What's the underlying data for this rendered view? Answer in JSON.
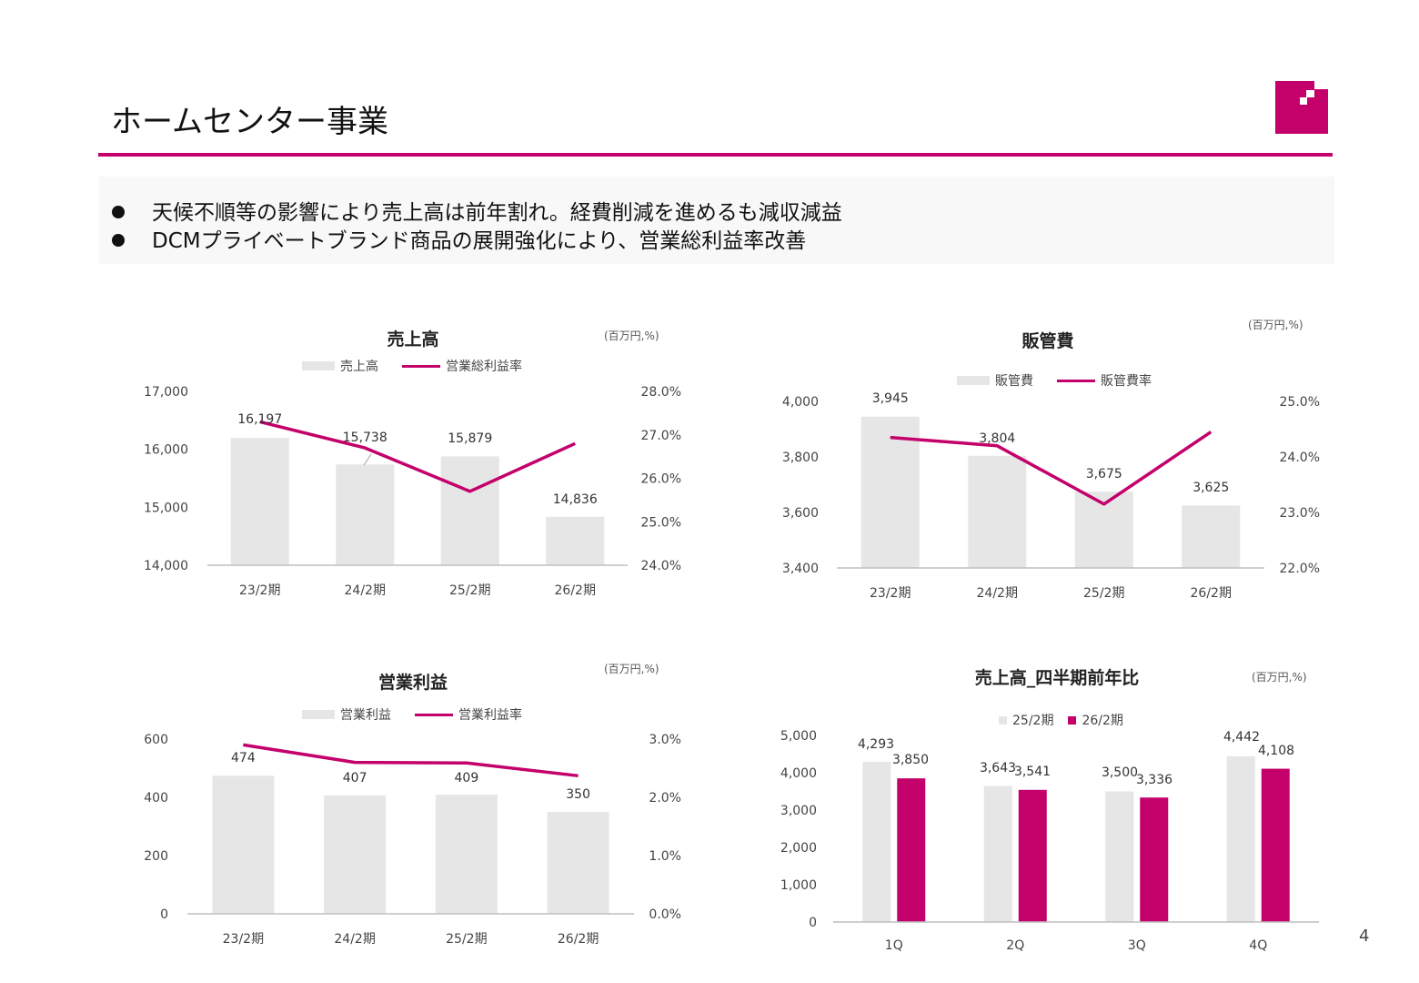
{
  "page": {
    "title": "ホームセンター事業",
    "page_number": "4",
    "accent_color": "#c4006b",
    "bar_color": "#e6e6e6",
    "bullets": [
      "天候不順等の影響により売上高は前年割れ。経費削減を進めるも減収減益",
      "DCMプライベートブランド商品の展開強化により、営業総利益率改善"
    ]
  },
  "charts": {
    "sales": {
      "title": "売上高",
      "unit": "(百万円,%)",
      "legend_bar": "売上高",
      "legend_line": "営業総利益率"
    },
    "sga": {
      "title": "販管費",
      "unit": "(百万円,%)",
      "legend_bar": "販管費",
      "legend_line": "販管費率"
    },
    "op": {
      "title": "営業利益",
      "unit": "(百万円,%)",
      "legend_bar": "営業利益",
      "legend_line": "営業利益率"
    },
    "quarterly": {
      "title": "売上高_四半期前年比",
      "unit": "(百万円,%)",
      "legend_a": "25/2期",
      "legend_b": "26/2期"
    }
  },
  "chart_data": [
    {
      "type": "bar",
      "title": "売上高",
      "categories": [
        "23/2期",
        "24/2期",
        "25/2期",
        "26/2期"
      ],
      "series": [
        {
          "name": "売上高",
          "values": [
            16197,
            15738,
            15879,
            14836
          ],
          "axis": "left",
          "labels": [
            "16,197",
            "15,738",
            "15,879",
            "14,836"
          ]
        },
        {
          "name": "営業総利益率",
          "type": "line",
          "values": [
            27.3,
            26.7,
            25.7,
            26.8
          ],
          "axis": "right"
        }
      ],
      "ylim_left": [
        14000,
        17000
      ],
      "yticks_left": [
        "17,000",
        "16,000",
        "15,000",
        "14,000"
      ],
      "ylim_right": [
        24.0,
        28.0
      ],
      "yticks_right": [
        "28.0%",
        "27.0%",
        "26.0%",
        "25.0%",
        "24.0%"
      ]
    },
    {
      "type": "bar",
      "title": "販管費",
      "categories": [
        "23/2期",
        "24/2期",
        "25/2期",
        "26/2期"
      ],
      "series": [
        {
          "name": "販管費",
          "values": [
            3945,
            3804,
            3675,
            3625
          ],
          "axis": "left",
          "labels": [
            "3,945",
            "3,804",
            "3,675",
            "3,625"
          ]
        },
        {
          "name": "販管費率",
          "type": "line",
          "values": [
            24.35,
            24.2,
            23.15,
            24.45
          ],
          "axis": "right"
        }
      ],
      "ylim_left": [
        3400,
        4000
      ],
      "yticks_left": [
        "4,000",
        "3,800",
        "3,600",
        "3,400"
      ],
      "ylim_right": [
        22.0,
        25.0
      ],
      "yticks_right": [
        "25.0%",
        "24.0%",
        "23.0%",
        "22.0%"
      ]
    },
    {
      "type": "bar",
      "title": "営業利益",
      "categories": [
        "23/2期",
        "24/2期",
        "25/2期",
        "26/2期"
      ],
      "series": [
        {
          "name": "営業利益",
          "values": [
            474,
            407,
            409,
            350
          ],
          "axis": "left",
          "labels": [
            "474",
            "407",
            "409",
            "350"
          ]
        },
        {
          "name": "営業利益率",
          "type": "line",
          "values": [
            2.9,
            2.6,
            2.59,
            2.37
          ],
          "axis": "right"
        }
      ],
      "ylim_left": [
        0,
        600
      ],
      "yticks_left": [
        "600",
        "400",
        "200",
        "0"
      ],
      "ylim_right": [
        0.0,
        3.0
      ],
      "yticks_right": [
        "3.0%",
        "2.0%",
        "1.0%",
        "0.0%"
      ]
    },
    {
      "type": "bar",
      "title": "売上高_四半期前年比",
      "categories": [
        "1Q",
        "2Q",
        "3Q",
        "4Q"
      ],
      "series": [
        {
          "name": "25/2期",
          "values": [
            4293,
            3643,
            3500,
            4442
          ],
          "labels": [
            "4,293",
            "3,643",
            "3,500",
            "4,442"
          ]
        },
        {
          "name": "26/2期",
          "values": [
            3850,
            3541,
            3336,
            4108
          ],
          "labels": [
            "3,850",
            "3,541",
            "3,336",
            "4,108"
          ]
        }
      ],
      "ylim": [
        0,
        5000
      ],
      "yticks": [
        "5,000",
        "4,000",
        "3,000",
        "2,000",
        "1,000",
        "0"
      ]
    }
  ]
}
